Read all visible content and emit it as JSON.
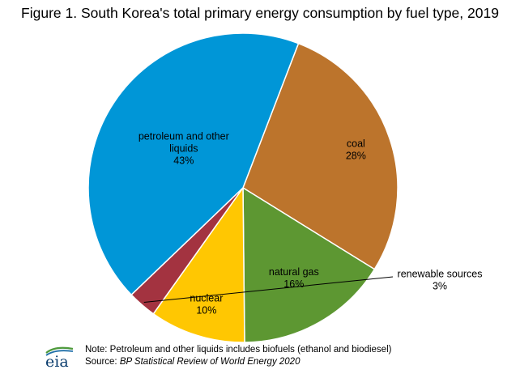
{
  "chart_data": {
    "type": "pie",
    "title": "Figure 1. South Korea's total primary energy consumption by fuel type, 2019",
    "slices": [
      {
        "label": "coal",
        "label_lines": [
          "coal"
        ],
        "value": 28,
        "value_label": "28%",
        "color": "#BC742C"
      },
      {
        "label": "natural gas",
        "label_lines": [
          "natural gas"
        ],
        "value": 16,
        "value_label": "16%",
        "color": "#5D9732"
      },
      {
        "label": "nuclear",
        "label_lines": [
          "nuclear"
        ],
        "value": 10,
        "value_label": "10%",
        "color": "#FFC702"
      },
      {
        "label": "renewable sources",
        "label_lines": [
          "renewable sources"
        ],
        "value": 3,
        "value_label": "3%",
        "color": "#A33340"
      },
      {
        "label": "petroleum and other liquids",
        "label_lines": [
          "petroleum and other",
          "liquids"
        ],
        "value": 43,
        "value_label": "43%",
        "color": "#0096D7"
      }
    ]
  },
  "footer": {
    "logo_text": "eia",
    "note": "Note: Petroleum and other liquids includes biofuels (ethanol and biodiesel)",
    "source_prefix": "Source: ",
    "source_title": "BP Statistical Review of World Energy 2020"
  }
}
